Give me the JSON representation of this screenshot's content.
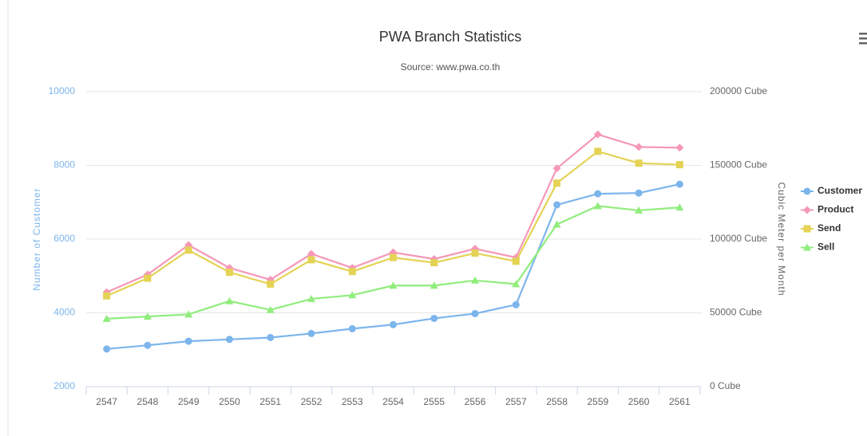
{
  "chart_data": {
    "type": "line",
    "title": "PWA Branch Statistics",
    "subtitle": "Source: www.pwa.co.th",
    "y_label": "Number of Customer",
    "y2_label": "Cubic Meter per Month",
    "categories": [
      "2547",
      "2548",
      "2549",
      "2550",
      "2551",
      "2552",
      "2553",
      "2554",
      "2555",
      "2556",
      "2557",
      "2558",
      "2559",
      "2560",
      "2561"
    ],
    "ylim": [
      2000,
      10000
    ],
    "yticks": [
      2000,
      4000,
      6000,
      8000,
      10000
    ],
    "y2lim": [
      0,
      200000
    ],
    "y2ticks": [
      {
        "value": 0,
        "label": "0 Cube"
      },
      {
        "value": 50000,
        "label": "50000 Cube"
      },
      {
        "value": 100000,
        "label": "100000 Cube"
      },
      {
        "value": 150000,
        "label": "150000 Cube"
      },
      {
        "value": 200000,
        "label": "200000 Cube"
      }
    ],
    "grid": true,
    "legend": "right",
    "series": [
      {
        "name": "Customer",
        "color": "#7cb5ec",
        "axis": "y",
        "values": [
          3020,
          3120,
          3230,
          3280,
          3330,
          3440,
          3570,
          3680,
          3850,
          3980,
          4220,
          6930,
          7230,
          7250,
          7490
        ]
      },
      {
        "name": "Product",
        "color": "#f598b8",
        "axis": "y2",
        "values": [
          64000,
          76000,
          96000,
          80500,
          72500,
          90000,
          80500,
          91000,
          86500,
          93500,
          87500,
          148000,
          171000,
          162500,
          162000
        ]
      },
      {
        "name": "Send",
        "color": "#e4d354",
        "axis": "y2",
        "values": [
          61500,
          73500,
          92500,
          77500,
          69500,
          86000,
          78000,
          87500,
          84000,
          90500,
          85000,
          138000,
          159500,
          151500,
          150500
        ]
      },
      {
        "name": "Sell",
        "color": "#90ed7d",
        "axis": "y2",
        "values": [
          46000,
          47500,
          49000,
          58000,
          52000,
          59500,
          62000,
          68500,
          68500,
          72000,
          69500,
          110000,
          122500,
          119500,
          121500
        ]
      }
    ]
  }
}
